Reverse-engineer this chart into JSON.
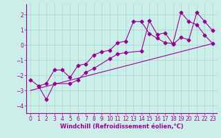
{
  "xlabel": "Windchill (Refroidissement éolien,°C)",
  "bg_color": "#cceee8",
  "grid_color": "#b0ddd8",
  "line_color": "#990099",
  "xlim": [
    -0.5,
    23.5
  ],
  "ylim": [
    -4.5,
    2.7
  ],
  "yticks": [
    -4,
    -3,
    -2,
    -1,
    0,
    1,
    2
  ],
  "xticks": [
    0,
    1,
    2,
    3,
    4,
    5,
    6,
    7,
    8,
    9,
    10,
    11,
    12,
    13,
    14,
    15,
    16,
    17,
    18,
    19,
    20,
    21,
    22,
    23
  ],
  "line1_x": [
    0,
    1,
    2,
    3,
    4,
    5,
    6,
    7,
    8,
    9,
    10,
    11,
    12,
    13,
    14,
    15,
    16,
    17,
    18,
    19,
    20,
    21,
    22,
    23
  ],
  "line1_y": [
    -2.3,
    -2.7,
    -2.55,
    -1.65,
    -1.65,
    -2.15,
    -1.35,
    -1.25,
    -0.65,
    -0.45,
    -0.35,
    0.15,
    0.25,
    1.55,
    1.55,
    0.75,
    0.45,
    0.15,
    0.1,
    2.15,
    1.55,
    1.35,
    0.65,
    0.1
  ],
  "line2_x": [
    1,
    2,
    3,
    5,
    6,
    7,
    8,
    10,
    11,
    12,
    14,
    15,
    16,
    17,
    18,
    19,
    20,
    21,
    22,
    23
  ],
  "line2_y": [
    -2.7,
    -3.6,
    -2.55,
    -2.55,
    -2.3,
    -1.8,
    -1.55,
    -0.9,
    -0.6,
    -0.5,
    -0.4,
    1.6,
    0.7,
    0.8,
    0.05,
    0.5,
    0.35,
    2.15,
    1.55,
    0.95
  ],
  "line3_x": [
    0,
    23
  ],
  "line3_y": [
    -3.0,
    0.1
  ],
  "fontsize_label": 6,
  "fontsize_tick": 5.5
}
